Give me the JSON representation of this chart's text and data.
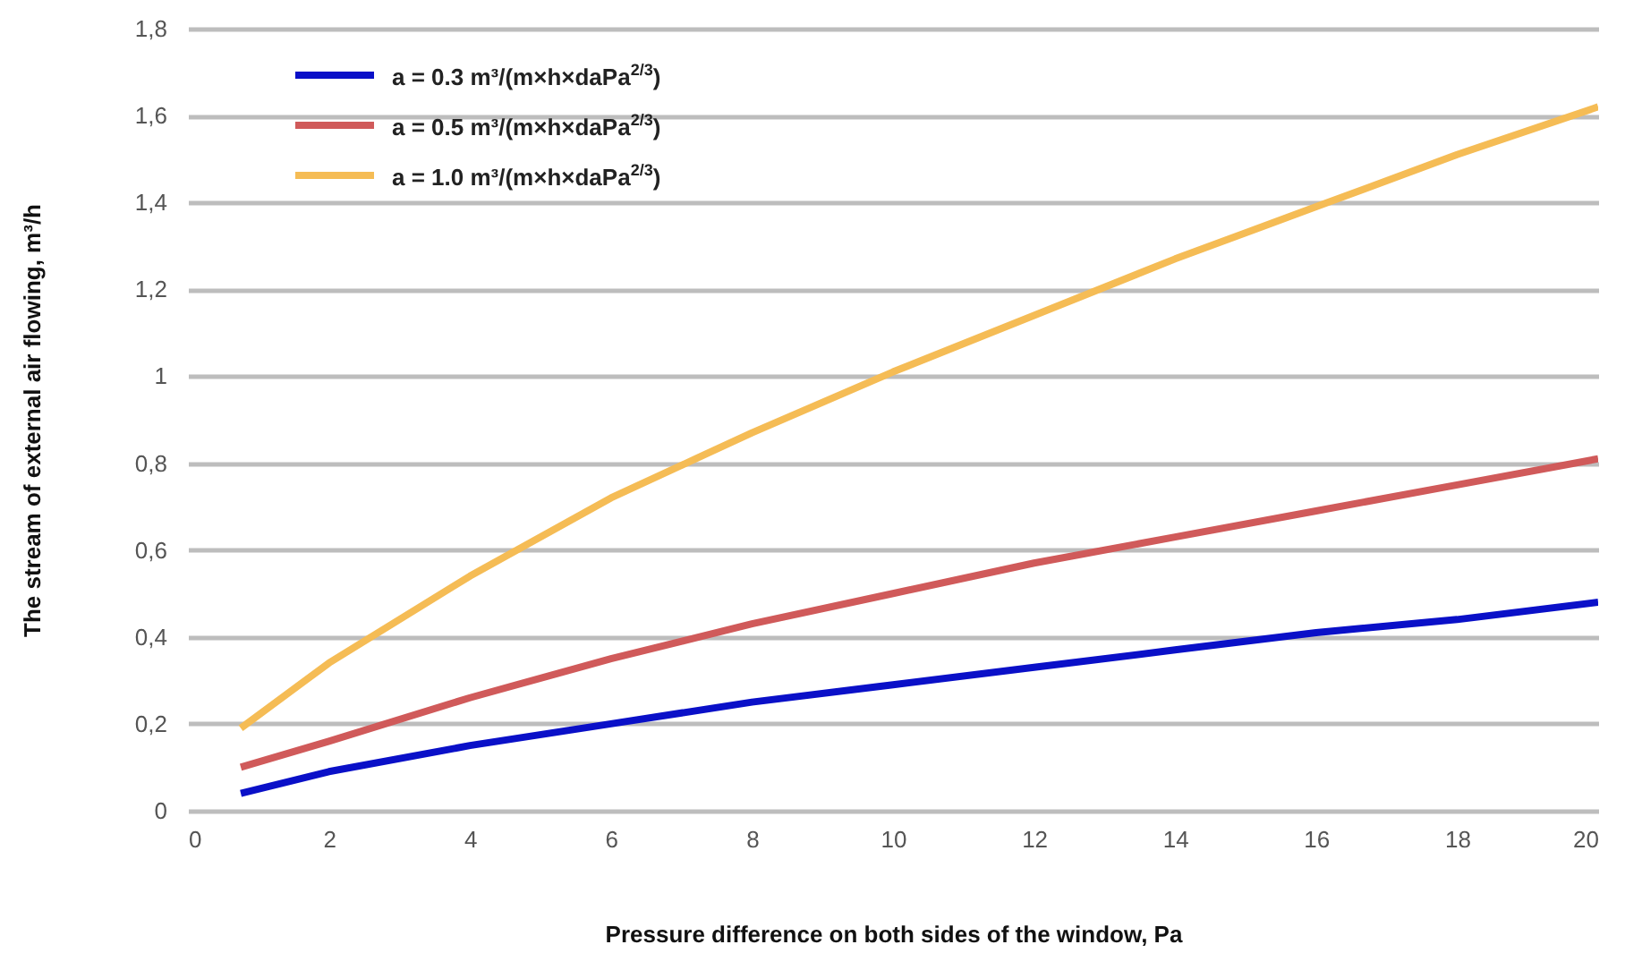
{
  "chart_data": {
    "type": "line",
    "xlabel": "Pressure difference on both sides of the window, Pa",
    "ylabel": "The stream of external air flowing, m³/h",
    "x": [
      0.75,
      2,
      4,
      6,
      8,
      10,
      12,
      14,
      16,
      18,
      20
    ],
    "series": [
      {
        "name": "a = 0.3 m³/(m×h×daPa$^{2/3}$)",
        "color": "#0a10c8",
        "values": [
          0.04,
          0.09,
          0.15,
          0.2,
          0.25,
          0.29,
          0.33,
          0.37,
          0.41,
          0.44,
          0.48
        ]
      },
      {
        "name": "a = 0.5 m³/(m×h×daPa$^{2/3}$)",
        "color": "#d05a5a",
        "values": [
          0.1,
          0.16,
          0.26,
          0.35,
          0.43,
          0.5,
          0.57,
          0.63,
          0.69,
          0.75,
          0.81
        ]
      },
      {
        "name": "a = 1.0 m³/(m×h×daPa$^{2/3}$)",
        "color": "#f5bc55",
        "values": [
          0.19,
          0.34,
          0.54,
          0.72,
          0.87,
          1.01,
          1.14,
          1.27,
          1.39,
          1.51,
          1.62
        ]
      }
    ],
    "xlim": [
      0,
      20
    ],
    "xticks": [
      0,
      2,
      4,
      6,
      8,
      10,
      12,
      14,
      16,
      18,
      20
    ],
    "ylim": [
      0,
      1.8
    ],
    "yticks": [
      0,
      {
        "value": 0.2,
        "label": "0,2"
      },
      {
        "value": 0.4,
        "label": "0,4"
      },
      {
        "value": 0.6,
        "label": "0,6"
      },
      {
        "value": 0.8,
        "label": "0,8"
      },
      1,
      {
        "value": 1.2,
        "label": "1,2"
      },
      {
        "value": 1.4,
        "label": "1,4"
      },
      {
        "value": 1.6,
        "label": "1,6"
      },
      {
        "value": 1.8,
        "label": "1,8"
      }
    ],
    "grid": "y",
    "legend": "top left",
    "marker": "none",
    "line_style": "solid"
  }
}
